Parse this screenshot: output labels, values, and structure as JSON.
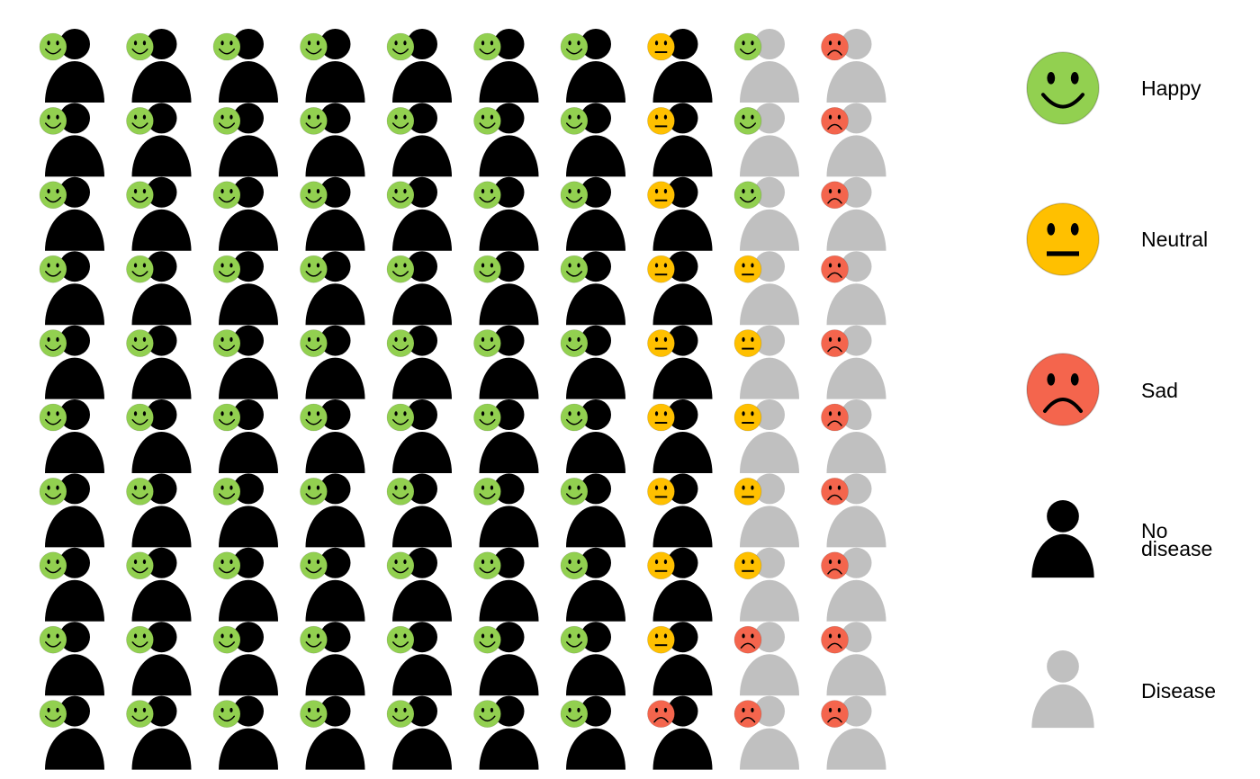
{
  "chart_data": {
    "type": "icon-array",
    "rows": 10,
    "columns": 10,
    "cell_codes": {
      "H": "happy, no disease",
      "N": "neutral, no disease",
      "S": "sad, no disease",
      "h": "happy, disease",
      "n": "neutral, disease",
      "s": "sad, disease"
    },
    "grid": [
      [
        "H",
        "H",
        "H",
        "H",
        "H",
        "H",
        "H",
        "N",
        "h",
        "s"
      ],
      [
        "H",
        "H",
        "H",
        "H",
        "H",
        "H",
        "H",
        "N",
        "h",
        "s"
      ],
      [
        "H",
        "H",
        "H",
        "H",
        "H",
        "H",
        "H",
        "N",
        "h",
        "s"
      ],
      [
        "H",
        "H",
        "H",
        "H",
        "H",
        "H",
        "H",
        "N",
        "n",
        "s"
      ],
      [
        "H",
        "H",
        "H",
        "H",
        "H",
        "H",
        "H",
        "N",
        "n",
        "s"
      ],
      [
        "H",
        "H",
        "H",
        "H",
        "H",
        "H",
        "H",
        "N",
        "n",
        "s"
      ],
      [
        "H",
        "H",
        "H",
        "H",
        "H",
        "H",
        "H",
        "N",
        "n",
        "s"
      ],
      [
        "H",
        "H",
        "H",
        "H",
        "H",
        "H",
        "H",
        "N",
        "n",
        "s"
      ],
      [
        "H",
        "H",
        "H",
        "H",
        "H",
        "H",
        "H",
        "N",
        "s",
        "s"
      ],
      [
        "H",
        "H",
        "H",
        "H",
        "H",
        "H",
        "H",
        "S",
        "s",
        "s"
      ]
    ],
    "counts": {
      "happy_no_disease": 70,
      "neutral_no_disease": 9,
      "sad_no_disease": 1,
      "happy_disease": 3,
      "neutral_disease": 5,
      "sad_disease": 12
    }
  },
  "legend": {
    "happy": {
      "label": "Happy",
      "color": "#92d050"
    },
    "neutral": {
      "label": "Neutral",
      "color": "#ffc000"
    },
    "sad": {
      "label": "Sad",
      "color": "#f4654d"
    },
    "no_disease": {
      "label_line1": "No",
      "label_line2": "disease",
      "color": "#000000"
    },
    "disease": {
      "label": "Disease",
      "color": "#c0c0c0"
    }
  }
}
